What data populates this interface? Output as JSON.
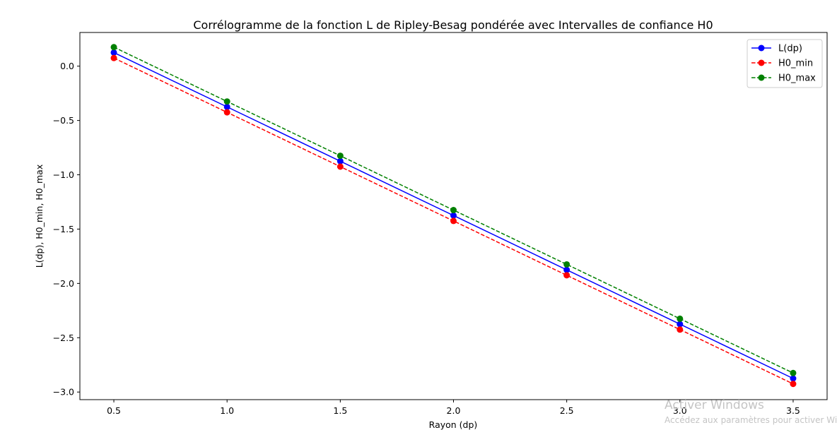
{
  "chart_data": {
    "type": "line",
    "title": "Corrélogramme de la fonction L de Ripley-Besag pondérée avec Intervalles de confiance H0",
    "xlabel": "Rayon (dp)",
    "ylabel": "L(dp), H0_min, H0_max",
    "x": [
      0.5,
      1.0,
      1.5,
      2.0,
      2.5,
      3.0,
      3.5
    ],
    "xlim": [
      0.35,
      3.65
    ],
    "ylim": [
      -3.07,
      0.31
    ],
    "x_ticks": [
      "0.5",
      "1.0",
      "1.5",
      "2.0",
      "2.5",
      "3.0",
      "3.5"
    ],
    "y_ticks": [
      "0.0",
      "−0.5",
      "−1.0",
      "−1.5",
      "−2.0",
      "−2.5",
      "−3.0"
    ],
    "y_tick_values": [
      0.0,
      -0.5,
      -1.0,
      -1.5,
      -2.0,
      -2.5,
      -3.0
    ],
    "grid": false,
    "legend_position": "top-right",
    "series": [
      {
        "name": "L(dp)",
        "color": "#0000ff",
        "style": "solid",
        "values": [
          0.125,
          -0.375,
          -0.875,
          -1.375,
          -1.875,
          -2.375,
          -2.875
        ]
      },
      {
        "name": "H0_min",
        "color": "#ff0000",
        "style": "dashed",
        "values": [
          0.075,
          -0.425,
          -0.925,
          -1.425,
          -1.925,
          -2.425,
          -2.925
        ]
      },
      {
        "name": "H0_max",
        "color": "#008000",
        "style": "dashed",
        "values": [
          0.175,
          -0.325,
          -0.825,
          -1.325,
          -1.825,
          -2.325,
          -2.825
        ]
      }
    ]
  },
  "watermark": {
    "title": "Activer Windows",
    "subtitle": "Accédez aux paramètres pour activer Windows."
  }
}
